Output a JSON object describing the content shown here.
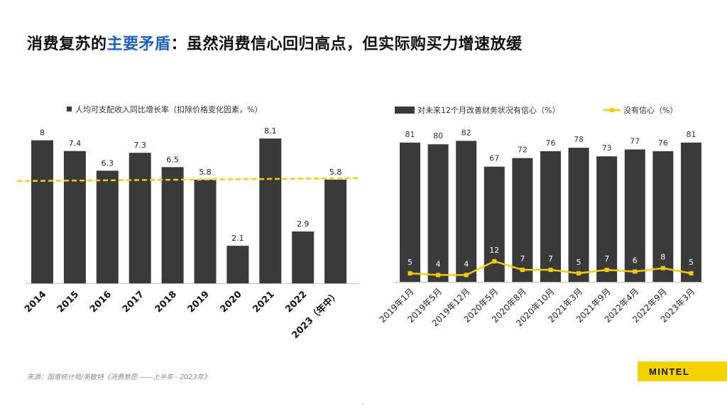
{
  "page": {
    "title_part1": "消费复苏的",
    "title_highlight": "主要矛盾",
    "title_part2": "：虽然消费信心回归高点，但实际购买力增速放缓",
    "source": "来源：国家统计局/英敏特《消费意愿 ——上半年 - 2023年》",
    "logo": "MINTEL"
  },
  "colors": {
    "bar": "#3a3a3a",
    "line": "#f5cc00",
    "highlight": "#1f5fbf"
  },
  "chart_data": [
    {
      "type": "bar",
      "title": "",
      "legend": [
        "人均可支配收入同比增长率（扣除价格变化因素，%）"
      ],
      "categories": [
        "2014",
        "2015",
        "2016",
        "2017",
        "2018",
        "2019",
        "2020",
        "2021",
        "2022",
        "2023（年中）"
      ],
      "values": [
        8,
        7.4,
        6.3,
        7.3,
        6.5,
        5.8,
        2.1,
        8.1,
        2.9,
        5.8
      ],
      "value_labels": [
        "8",
        "7.4",
        "6.3",
        "7.3",
        "6.5",
        "5.8",
        "2.1",
        "8.1",
        "2.9",
        "5.8"
      ],
      "reference_line": {
        "value": 5.8,
        "style": "dashed"
      },
      "ylim": [
        0,
        8.5
      ],
      "xlabel": "",
      "ylabel": ""
    },
    {
      "type": "bar",
      "title": "",
      "categories": [
        "2019年1月",
        "2019年5月",
        "2019年12月",
        "2020年5月",
        "2020年8月",
        "2020年10月",
        "2021年3月",
        "2021年9月",
        "2022年4月",
        "2022年9月",
        "2023年3月"
      ],
      "series": [
        {
          "name": "对未来12个月改善财务状况有信心（%）",
          "type": "bar",
          "values": [
            81,
            80,
            82,
            67,
            72,
            76,
            78,
            73,
            77,
            76,
            81
          ]
        },
        {
          "name": "没有信心（%）",
          "type": "line",
          "values": [
            5,
            4,
            4,
            12,
            7,
            7,
            5,
            7,
            6,
            8,
            5
          ]
        }
      ],
      "ylim": [
        0,
        90
      ],
      "xlabel": "",
      "ylabel": ""
    }
  ]
}
